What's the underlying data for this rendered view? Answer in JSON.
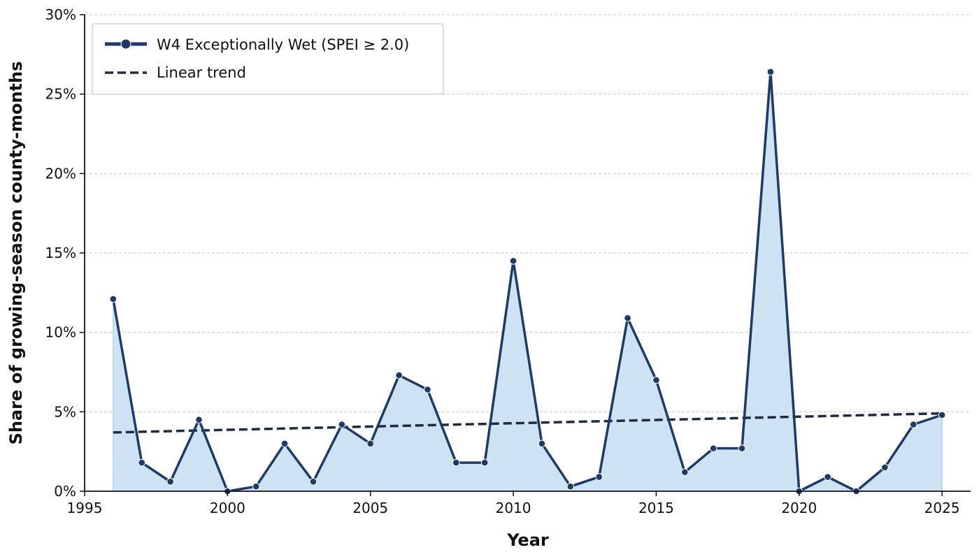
{
  "chart_data": {
    "type": "line",
    "title": "",
    "xlabel": "Year",
    "ylabel": "Share of growing-season county-months",
    "xlim": [
      1995,
      2026
    ],
    "ylim": [
      0,
      30
    ],
    "x_ticks": [
      1995,
      2000,
      2005,
      2010,
      2015,
      2020,
      2025
    ],
    "y_ticks": [
      0,
      5,
      10,
      15,
      20,
      25,
      30
    ],
    "y_tick_labels": [
      "0%",
      "5%",
      "10%",
      "15%",
      "20%",
      "25%",
      "30%"
    ],
    "grid": "horizontal dashed",
    "legend_position": "top-left",
    "series": [
      {
        "name": "W4 Exceptionally Wet (SPEI ≥ 2.0)",
        "style": "line-with-markers, filled area",
        "color": "#1f3a68",
        "fill_color": "#cde3f3",
        "x": [
          1996,
          1997,
          1998,
          1999,
          2000,
          2001,
          2002,
          2003,
          2004,
          2005,
          2006,
          2007,
          2008,
          2009,
          2010,
          2011,
          2012,
          2013,
          2014,
          2015,
          2016,
          2017,
          2018,
          2019,
          2020,
          2021,
          2022,
          2023,
          2024,
          2025
        ],
        "values": [
          12.1,
          1.8,
          0.6,
          4.5,
          0.0,
          0.3,
          3.0,
          0.6,
          4.2,
          3.0,
          7.3,
          6.4,
          1.8,
          1.8,
          14.5,
          3.0,
          0.3,
          0.9,
          10.9,
          7.0,
          1.2,
          2.7,
          2.7,
          26.4,
          0.0,
          0.9,
          0.0,
          1.5,
          4.2,
          4.8
        ]
      },
      {
        "name": "Linear trend",
        "style": "dashed",
        "color": "#1c2b3e",
        "x": [
          1996,
          2025
        ],
        "values": [
          3.7,
          4.9
        ]
      }
    ]
  }
}
